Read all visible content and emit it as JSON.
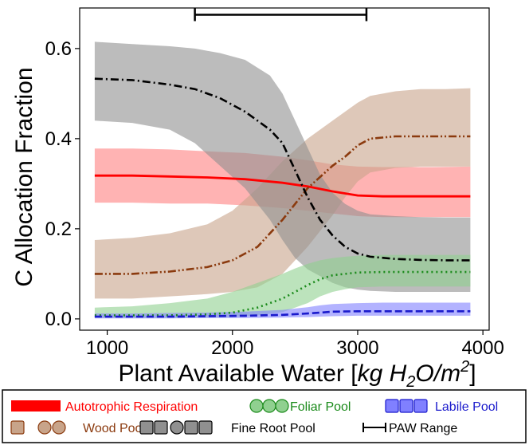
{
  "chart_data": {
    "type": "line",
    "xlabel_prefix": "Plant Available Water [",
    "xlabel_math": "kg H",
    "xlabel_sub": "2",
    "xlabel_math2": "O/m",
    "xlabel_sup": "2",
    "xlabel_suffix": "]",
    "ylabel": "C Allocation Fraction",
    "xlim": [
      780,
      4050
    ],
    "ylim": [
      -0.025,
      0.69
    ],
    "xticks": [
      1000,
      2000,
      3000,
      4000
    ],
    "yticks": [
      0.0,
      0.2,
      0.4,
      0.6
    ],
    "ytick_labels": [
      "0.0",
      "0.2",
      "0.4",
      "0.6"
    ],
    "grid": false,
    "paw_range": [
      1700,
      3070
    ],
    "paw_range_y": 0.675,
    "series": [
      {
        "name": "Autotrophic Respiration",
        "color": "#ff0000",
        "fill": "#ff8080",
        "style": "solid",
        "x": [
          900,
          1200,
          1500,
          1800,
          2100,
          2400,
          2600,
          2800,
          3000,
          3200,
          3400,
          3600,
          3900
        ],
        "y": [
          0.318,
          0.318,
          0.316,
          0.314,
          0.31,
          0.302,
          0.294,
          0.283,
          0.274,
          0.272,
          0.272,
          0.272,
          0.272
        ],
        "upper": [
          0.378,
          0.378,
          0.376,
          0.372,
          0.368,
          0.36,
          0.352,
          0.343,
          0.338,
          0.337,
          0.337,
          0.337,
          0.338
        ],
        "lower": [
          0.258,
          0.258,
          0.256,
          0.256,
          0.252,
          0.246,
          0.24,
          0.234,
          0.228,
          0.226,
          0.226,
          0.226,
          0.226
        ]
      },
      {
        "name": "Wood Pool",
        "color": "#8b3a0e",
        "fill": "#c8a48a",
        "style": "dashdotdot",
        "x": [
          900,
          1200,
          1500,
          1800,
          2000,
          2200,
          2400,
          2600,
          2800,
          2900,
          3000,
          3100,
          3300,
          3500,
          3700,
          3900
        ],
        "y": [
          0.1,
          0.1,
          0.105,
          0.115,
          0.13,
          0.16,
          0.22,
          0.29,
          0.34,
          0.36,
          0.385,
          0.4,
          0.405,
          0.405,
          0.405,
          0.405
        ],
        "upper": [
          0.175,
          0.18,
          0.19,
          0.21,
          0.24,
          0.29,
          0.35,
          0.4,
          0.44,
          0.46,
          0.48,
          0.495,
          0.505,
          0.51,
          0.51,
          0.512
        ],
        "lower": [
          0.045,
          0.045,
          0.05,
          0.055,
          0.06,
          0.07,
          0.1,
          0.16,
          0.23,
          0.27,
          0.305,
          0.325,
          0.335,
          0.338,
          0.338,
          0.338
        ]
      },
      {
        "name": "Fine Root Pool",
        "color": "#000000",
        "fill": "#909090",
        "style": "dashdot",
        "x": [
          900,
          1200,
          1500,
          1700,
          1900,
          2100,
          2300,
          2400,
          2500,
          2600,
          2700,
          2800,
          2900,
          3000,
          3100,
          3300,
          3500,
          3700,
          3900
        ],
        "y": [
          0.533,
          0.53,
          0.52,
          0.51,
          0.49,
          0.46,
          0.42,
          0.39,
          0.33,
          0.27,
          0.22,
          0.185,
          0.16,
          0.145,
          0.138,
          0.133,
          0.131,
          0.13,
          0.13
        ],
        "upper": [
          0.615,
          0.61,
          0.605,
          0.6,
          0.59,
          0.575,
          0.54,
          0.5,
          0.44,
          0.38,
          0.32,
          0.28,
          0.255,
          0.24,
          0.232,
          0.228,
          0.226,
          0.225,
          0.225
        ],
        "lower": [
          0.44,
          0.435,
          0.42,
          0.39,
          0.34,
          0.29,
          0.22,
          0.175,
          0.135,
          0.11,
          0.095,
          0.08,
          0.07,
          0.065,
          0.062,
          0.06,
          0.06,
          0.06,
          0.06
        ]
      },
      {
        "name": "Foliar Pool",
        "color": "#1a8a1a",
        "fill": "#90d090",
        "style": "dotted",
        "x": [
          900,
          1200,
          1500,
          1800,
          2000,
          2200,
          2400,
          2500,
          2600,
          2700,
          2800,
          2900,
          3000,
          3200,
          3400,
          3600,
          3900
        ],
        "y": [
          0.008,
          0.008,
          0.008,
          0.01,
          0.014,
          0.025,
          0.045,
          0.06,
          0.075,
          0.088,
          0.097,
          0.1,
          0.103,
          0.104,
          0.104,
          0.104,
          0.104
        ],
        "upper": [
          0.025,
          0.028,
          0.035,
          0.045,
          0.06,
          0.08,
          0.1,
          0.112,
          0.122,
          0.13,
          0.135,
          0.138,
          0.14,
          0.142,
          0.142,
          0.142,
          0.142
        ],
        "lower": [
          0.002,
          0.002,
          0.002,
          0.003,
          0.004,
          0.008,
          0.015,
          0.025,
          0.035,
          0.05,
          0.06,
          0.066,
          0.07,
          0.072,
          0.072,
          0.072,
          0.072
        ]
      },
      {
        "name": "Labile Pool",
        "color": "#1a1acc",
        "fill": "#8080ff",
        "style": "dashed",
        "x": [
          900,
          1200,
          1500,
          1800,
          2100,
          2400,
          2600,
          2700,
          2800,
          3000,
          3200,
          3500,
          3900
        ],
        "y": [
          0.005,
          0.005,
          0.005,
          0.006,
          0.007,
          0.009,
          0.012,
          0.014,
          0.016,
          0.017,
          0.017,
          0.017,
          0.017
        ],
        "upper": [
          0.012,
          0.012,
          0.013,
          0.014,
          0.016,
          0.02,
          0.026,
          0.03,
          0.033,
          0.035,
          0.036,
          0.036,
          0.036
        ],
        "lower": [
          0.001,
          0.001,
          0.001,
          0.002,
          0.002,
          0.003,
          0.004,
          0.005,
          0.006,
          0.007,
          0.007,
          0.007,
          0.007
        ]
      }
    ],
    "legend": [
      {
        "label": "Autotrophic Respiration",
        "text_color": "#ff0000",
        "kind": "bar",
        "fill": "#ff0000",
        "stroke": "#ff0000"
      },
      {
        "label": "Foliar Pool",
        "text_color": "#1a8a1a",
        "kind": "circles",
        "fill": "#90d090",
        "stroke": "#1a8a1a"
      },
      {
        "label": "Labile Pool",
        "text_color": "#1a1acc",
        "kind": "squares",
        "fill": "#8080ff",
        "stroke": "#1a1acc"
      },
      {
        "label": "Wood Pool",
        "text_color": "#8b3a0e",
        "kind": "sqcirc",
        "fill": "#c8a48a",
        "stroke": "#8b3a0e"
      },
      {
        "label": "Fine Root Pool",
        "text_color": "#000000",
        "kind": "sqcircsq",
        "fill": "#909090",
        "stroke": "#000000"
      },
      {
        "label": "PAW Range",
        "text_color": "#000000",
        "kind": "errorbar",
        "fill": "none",
        "stroke": "#000000"
      }
    ]
  }
}
